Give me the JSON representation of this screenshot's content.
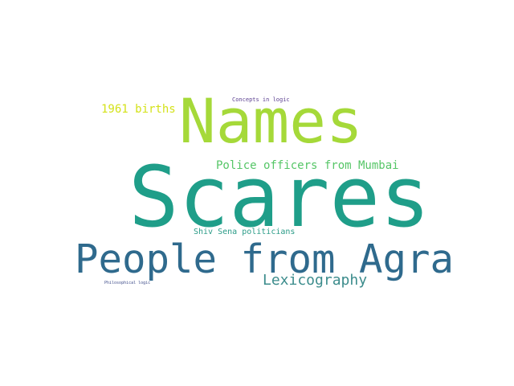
{
  "words": {
    "scares": {
      "text": "Scares",
      "color": "#1f9e89"
    },
    "names": {
      "text": "Names",
      "color": "#a5d939"
    },
    "people_from_agra": {
      "text": "People from Agra",
      "color": "#2f6a8d"
    },
    "police_officers": {
      "text": "Police officers from Mumbai",
      "color": "#56c667"
    },
    "births_1961": {
      "text": "1961 births",
      "color": "#d4e21a"
    },
    "lexicography": {
      "text": "Lexicography",
      "color": "#3c8c8c"
    },
    "shiv_sena": {
      "text": "Shiv Sena politicians",
      "color": "#2a9b87"
    },
    "concepts_in_logic": {
      "text": "Concepts in logic",
      "color": "#5b3f90"
    },
    "philosophical_logic": {
      "text": "Philosophical logic",
      "color": "#3f4d8a"
    }
  }
}
